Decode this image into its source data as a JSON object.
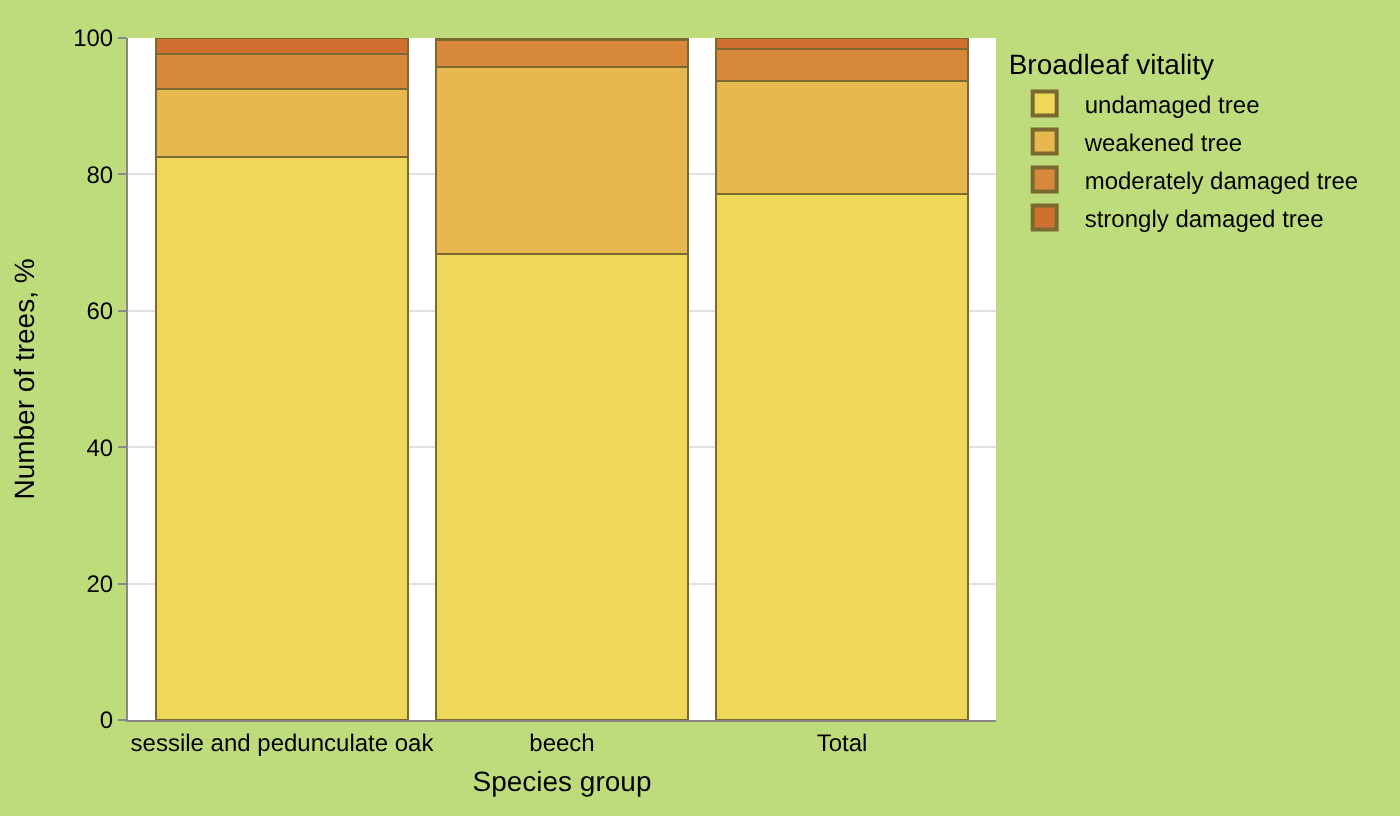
{
  "chart_data": {
    "type": "bar",
    "stacked": true,
    "xlabel": "Species group",
    "ylabel": "Number of trees, %",
    "legend_title": "Broadleaf vitality",
    "categories": [
      "sessile and pedunculate oak",
      "beech",
      "Total"
    ],
    "series": [
      {
        "name": "undamaged tree",
        "color": "#efd75a",
        "values": [
          82.5,
          68.3,
          77.1
        ]
      },
      {
        "name": "weakened tree",
        "color": "#e8b850",
        "values": [
          10,
          27.5,
          16.6
        ]
      },
      {
        "name": "moderately damaged tree",
        "color": "#d8883a",
        "values": [
          5.2,
          3.9,
          4.7
        ]
      },
      {
        "name": "strongly damaged tree",
        "color": "#d07030",
        "values": [
          2.3,
          0.3,
          1.6
        ]
      }
    ],
    "ylim": [
      0,
      100
    ],
    "yticks": [
      0,
      20,
      40,
      60,
      80,
      100
    ],
    "grid": "y",
    "legend": "top right"
  }
}
